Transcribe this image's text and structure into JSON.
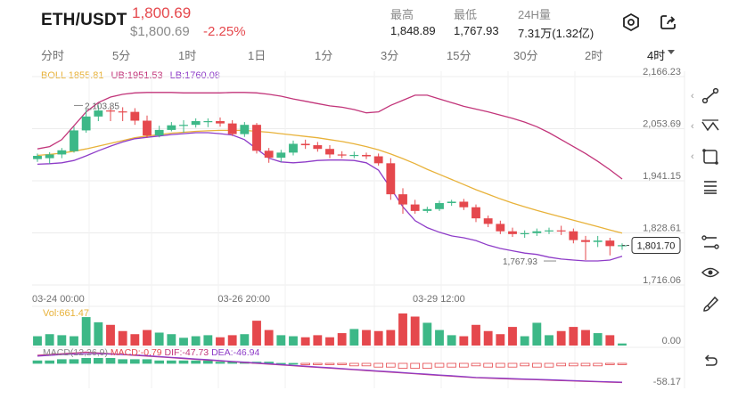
{
  "header": {
    "pair": "ETH/USDT",
    "price": "1,800.69",
    "price_usd": "$1,800.69",
    "change": "-2.25%",
    "stats": [
      {
        "label": "最高",
        "value": "1,848.89"
      },
      {
        "label": "最低",
        "value": "1,767.93"
      },
      {
        "label": "24H量",
        "value": "7.31万(1.32亿)"
      }
    ],
    "icons": [
      "settings-icon",
      "share-icon"
    ]
  },
  "tabs": [
    {
      "label": "分时",
      "active": false
    },
    {
      "label": "5分",
      "active": false
    },
    {
      "label": "1时",
      "active": false
    },
    {
      "label": "1日",
      "active": false
    },
    {
      "label": "1分",
      "active": false
    },
    {
      "label": "3分",
      "active": false
    },
    {
      "label": "15分",
      "active": false
    },
    {
      "label": "30分",
      "active": false
    },
    {
      "label": "2时",
      "active": false
    },
    {
      "label": "4时",
      "active": true
    }
  ],
  "indicators": {
    "boll": "BOLL 1855.81",
    "ub": "UB:1951.53",
    "lb": "LB:1760.08",
    "vol": "Vol:661.47",
    "macd": "MACD(12,26,9)",
    "macd_val": "MACD:-0.79",
    "dif": "DIF:-47.73",
    "dea": "DEA:-46.94"
  },
  "colors": {
    "up": "#3db887",
    "down": "#e5484d",
    "boll_mid": "#e8b23a",
    "boll_band": "#c2357a",
    "lb_band": "#8e3cc8",
    "grid": "#ececec",
    "axis_text": "#6f6f6f"
  },
  "chart_data": {
    "type": "candlestick",
    "price_axis_ticks": [
      "2,166.23",
      "2,053.69",
      "1,941.15",
      "1,828.61",
      "1,716.06"
    ],
    "price_axis_values": [
      2166.23,
      2053.69,
      1941.15,
      1828.61,
      1716.06
    ],
    "current_price_label": "1,801.70",
    "current_price": 1801.7,
    "volume_axis_tick": "0.00",
    "macd_axis_tick": "-58.17",
    "time_ticks": [
      "03-24 00:00",
      "03-26 20:00",
      "03-29 12:00"
    ],
    "time_tick_index": [
      0,
      17,
      33
    ],
    "high_annotation": {
      "label": "2,103.85",
      "index": 3,
      "value": 2103.85
    },
    "low_annotation": {
      "label": "1,767.93",
      "index": 42,
      "value": 1767.93
    },
    "candles": [
      {
        "o": 1988,
        "c": 1995,
        "h": 2000,
        "l": 1982
      },
      {
        "o": 1990,
        "c": 1998,
        "h": 2003,
        "l": 1978
      },
      {
        "o": 1998,
        "c": 2007,
        "h": 2012,
        "l": 1990
      },
      {
        "o": 2005,
        "c": 2050,
        "h": 2058,
        "l": 2002
      },
      {
        "o": 2050,
        "c": 2080,
        "h": 2095,
        "l": 2045
      },
      {
        "o": 2080,
        "c": 2093,
        "h": 2104,
        "l": 2070
      },
      {
        "o": 2093,
        "c": 2091,
        "h": 2100,
        "l": 2070
      },
      {
        "o": 2091,
        "c": 2090,
        "h": 2100,
        "l": 2070
      },
      {
        "o": 2090,
        "c": 2071,
        "h": 2098,
        "l": 2062
      },
      {
        "o": 2071,
        "c": 2039,
        "h": 2082,
        "l": 2034
      },
      {
        "o": 2039,
        "c": 2051,
        "h": 2060,
        "l": 2035
      },
      {
        "o": 2051,
        "c": 2061,
        "h": 2068,
        "l": 2048
      },
      {
        "o": 2061,
        "c": 2062,
        "h": 2072,
        "l": 2045
      },
      {
        "o": 2062,
        "c": 2070,
        "h": 2076,
        "l": 2056
      },
      {
        "o": 2070,
        "c": 2070,
        "h": 2076,
        "l": 2057
      },
      {
        "o": 2070,
        "c": 2065,
        "h": 2078,
        "l": 2058
      },
      {
        "o": 2065,
        "c": 2042,
        "h": 2072,
        "l": 2038
      },
      {
        "o": 2042,
        "c": 2062,
        "h": 2068,
        "l": 2036
      },
      {
        "o": 2062,
        "c": 2006,
        "h": 2066,
        "l": 2000
      },
      {
        "o": 2006,
        "c": 1991,
        "h": 2012,
        "l": 1980
      },
      {
        "o": 1991,
        "c": 2002,
        "h": 2008,
        "l": 1982
      },
      {
        "o": 2002,
        "c": 2021,
        "h": 2028,
        "l": 1996
      },
      {
        "o": 2021,
        "c": 2018,
        "h": 2030,
        "l": 2010
      },
      {
        "o": 2018,
        "c": 2010,
        "h": 2025,
        "l": 2004
      },
      {
        "o": 2010,
        "c": 1998,
        "h": 2018,
        "l": 1990
      },
      {
        "o": 1998,
        "c": 1996,
        "h": 2005,
        "l": 1990
      },
      {
        "o": 1996,
        "c": 1997,
        "h": 2004,
        "l": 1990
      },
      {
        "o": 1997,
        "c": 1994,
        "h": 2002,
        "l": 1988
      },
      {
        "o": 1994,
        "c": 1979,
        "h": 2000,
        "l": 1974
      },
      {
        "o": 1979,
        "c": 1912,
        "h": 1990,
        "l": 1900
      },
      {
        "o": 1912,
        "c": 1890,
        "h": 1925,
        "l": 1870
      },
      {
        "o": 1890,
        "c": 1876,
        "h": 1900,
        "l": 1870
      },
      {
        "o": 1876,
        "c": 1880,
        "h": 1885,
        "l": 1872
      },
      {
        "o": 1880,
        "c": 1893,
        "h": 1898,
        "l": 1876
      },
      {
        "o": 1893,
        "c": 1896,
        "h": 1900,
        "l": 1887
      },
      {
        "o": 1896,
        "c": 1884,
        "h": 1902,
        "l": 1878
      },
      {
        "o": 1884,
        "c": 1860,
        "h": 1890,
        "l": 1852
      },
      {
        "o": 1860,
        "c": 1848,
        "h": 1866,
        "l": 1841
      },
      {
        "o": 1848,
        "c": 1832,
        "h": 1855,
        "l": 1826
      },
      {
        "o": 1832,
        "c": 1826,
        "h": 1840,
        "l": 1820
      },
      {
        "o": 1826,
        "c": 1828,
        "h": 1834,
        "l": 1818
      },
      {
        "o": 1828,
        "c": 1832,
        "h": 1838,
        "l": 1822
      },
      {
        "o": 1832,
        "c": 1834,
        "h": 1840,
        "l": 1826
      },
      {
        "o": 1834,
        "c": 1832,
        "h": 1844,
        "l": 1824
      },
      {
        "o": 1832,
        "c": 1813,
        "h": 1838,
        "l": 1806
      },
      {
        "o": 1813,
        "c": 1809,
        "h": 1822,
        "l": 1770
      },
      {
        "o": 1809,
        "c": 1812,
        "h": 1822,
        "l": 1798
      },
      {
        "o": 1812,
        "c": 1800,
        "h": 1818,
        "l": 1780
      },
      {
        "o": 1800,
        "c": 1802,
        "h": 1806,
        "l": 1792
      }
    ],
    "boll_mid": [
      1996,
      1998,
      2001,
      2005,
      2010,
      2016,
      2022,
      2028,
      2034,
      2038,
      2041,
      2044,
      2046,
      2048,
      2049,
      2050,
      2050,
      2050,
      2048,
      2046,
      2043,
      2040,
      2037,
      2034,
      2030,
      2026,
      2021,
      2015,
      2008,
      1999,
      1989,
      1978,
      1966,
      1955,
      1944,
      1933,
      1922,
      1912,
      1902,
      1893,
      1885,
      1877,
      1870,
      1863,
      1856,
      1849,
      1842,
      1835,
      1828
    ],
    "boll_ub": [
      2010,
      2015,
      2030,
      2060,
      2090,
      2110,
      2122,
      2128,
      2131,
      2132,
      2132,
      2132,
      2131,
      2131,
      2131,
      2131,
      2132,
      2132,
      2131,
      2128,
      2124,
      2118,
      2113,
      2108,
      2103,
      2100,
      2095,
      2088,
      2090,
      2104,
      2115,
      2126,
      2126,
      2118,
      2110,
      2102,
      2096,
      2090,
      2083,
      2076,
      2068,
      2058,
      2045,
      2030,
      2015,
      2000,
      1983,
      1965,
      1945
    ],
    "boll_lb": [
      1977,
      1978,
      1980,
      1985,
      1995,
      2006,
      2016,
      2025,
      2032,
      2035,
      2038,
      2041,
      2043,
      2045,
      2045,
      2043,
      2040,
      2030,
      2010,
      1990,
      1982,
      1980,
      1982,
      1985,
      1986,
      1986,
      1985,
      1980,
      1964,
      1925,
      1885,
      1855,
      1840,
      1830,
      1822,
      1818,
      1812,
      1802,
      1795,
      1790,
      1785,
      1782,
      1776,
      1772,
      1770,
      1768,
      1768,
      1770,
      1778
    ],
    "volume": [
      18,
      22,
      20,
      18,
      55,
      45,
      40,
      28,
      22,
      30,
      25,
      22,
      15,
      18,
      20,
      16,
      20,
      22,
      48,
      30,
      20,
      18,
      16,
      20,
      16,
      24,
      32,
      30,
      28,
      30,
      62,
      56,
      44,
      30,
      20,
      18,
      40,
      28,
      22,
      36,
      18,
      44,
      20,
      28,
      36,
      30,
      24,
      20,
      4
    ],
    "macd_hist": [
      2,
      2,
      3,
      3,
      4,
      4,
      4,
      3,
      3,
      3,
      2,
      2,
      2,
      2,
      2,
      1,
      1,
      1,
      1,
      1,
      0,
      0,
      -1,
      -1,
      -1,
      -1,
      -2,
      -2,
      -3,
      -3,
      -4,
      -4,
      -4,
      -3,
      -3,
      -3,
      -2,
      -3,
      -3,
      -3,
      -2,
      -3,
      -3,
      -2,
      -2,
      -2,
      -2,
      -1,
      -1
    ],
    "dif": [
      20,
      22,
      24,
      26,
      28,
      26,
      24,
      22,
      20,
      18,
      16,
      14,
      12,
      10,
      8,
      6,
      4,
      2,
      0,
      -2,
      -4,
      -6,
      -8,
      -10,
      -12,
      -14,
      -16,
      -18,
      -20,
      -22,
      -24,
      -26,
      -28,
      -30,
      -32,
      -34,
      -36,
      -37,
      -38,
      -39,
      -40,
      -41,
      -42,
      -43,
      -44,
      -45,
      -46,
      -47,
      -47.73
    ],
    "dea": [
      18,
      20,
      22,
      23,
      24,
      24,
      23,
      22,
      21,
      19,
      17,
      15,
      13,
      11,
      9,
      7,
      5,
      3,
      1,
      -1,
      -3,
      -5,
      -7,
      -9,
      -11,
      -13,
      -15,
      -17,
      -19,
      -21,
      -23,
      -25,
      -27,
      -29,
      -31,
      -33,
      -35,
      -36,
      -37,
      -38,
      -39,
      -40,
      -41,
      -42,
      -43,
      -44,
      -45,
      -46,
      -46.94
    ]
  },
  "right_tools": [
    "trend-line-icon",
    "zigzag-icon",
    "shape-icon",
    "layers-icon",
    "ruler-icon",
    "eye-icon",
    "brush-icon",
    "undo-icon"
  ]
}
